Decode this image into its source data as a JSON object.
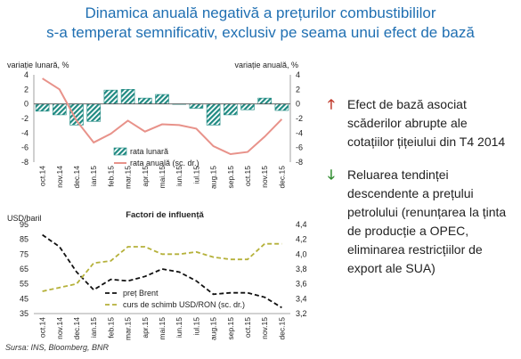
{
  "title": {
    "line1": "Dinamica anuală negativă a prețurilor combustibililor",
    "line2": "s-a temperat semnificativ, exclusiv pe seama unui efect de bază"
  },
  "colors": {
    "title": "#1f6fb2",
    "monthly_bar": "#1f8a82",
    "annual_line": "#e8928a",
    "brent_line": "#111111",
    "fx_line": "#b5b13a",
    "up_arrow": "#c0392b",
    "down_arrow": "#2e8b2e"
  },
  "bullets": [
    {
      "icon": "arrow-up-icon",
      "text": "Efect de bază asociat scăderilor abrupte ale cotațiilor țițeiului din T4 2014"
    },
    {
      "icon": "arrow-down-icon",
      "text": "Reluarea tendinței descendente a prețului petrolului (renunțarea la ținta de producție a OPEC, eliminarea restricțiilor de export ale SUA)"
    }
  ],
  "source": "Sursa: INS, Bloomberg, BNR",
  "chart_data": [
    {
      "type": "bar",
      "left_axis_label": "variație lunară, %",
      "right_axis_label": "variație anuală, %",
      "categories": [
        "oct.14",
        "nov.14",
        "dec.14",
        "ian.15",
        "feb.15",
        "mar.15",
        "apr.15",
        "mai.15",
        "iun.15",
        "iul.15",
        "aug.15",
        "sep.15",
        "oct.15",
        "nov.15",
        "dec.15"
      ],
      "ylim": [
        -8,
        4
      ],
      "yticks": [
        -8,
        -6,
        -4,
        -2,
        0,
        2,
        4
      ],
      "series": [
        {
          "name": "rata lunară",
          "type": "bar",
          "axis": "left",
          "values": [
            -1.0,
            -1.5,
            -2.9,
            -2.4,
            1.9,
            2.0,
            0.8,
            1.3,
            0.0,
            -0.6,
            -2.9,
            -1.5,
            -0.8,
            0.8,
            -0.9
          ]
        },
        {
          "name": "rata anuală  (sc. dr.)",
          "type": "line",
          "axis": "right",
          "values": [
            3.5,
            2.0,
            -2.3,
            -5.3,
            -4.1,
            -2.3,
            -3.8,
            -2.8,
            -2.9,
            -3.4,
            -5.8,
            -6.9,
            -6.6,
            -4.5,
            -2.1
          ]
        }
      ],
      "legend": "bottom-center"
    },
    {
      "type": "line",
      "title": "Factori de influență",
      "left_axis_label": "USD/baril",
      "categories": [
        "oct.14",
        "nov.14",
        "dec.14",
        "ian.15",
        "feb.15",
        "mar.15",
        "apr.15",
        "mai.15",
        "iun.15",
        "iul.15",
        "aug.15",
        "sep.15",
        "oct.15",
        "nov.15",
        "dec.15"
      ],
      "ylim_left": [
        35,
        95
      ],
      "yticks_left": [
        35,
        45,
        55,
        65,
        75,
        85,
        95
      ],
      "ylim_right": [
        3.2,
        4.4
      ],
      "yticks_right": [
        "3,2",
        "3,4",
        "3,6",
        "3,8",
        "4,0",
        "4,2",
        "4,4"
      ],
      "series": [
        {
          "name": "preț Brent",
          "axis": "left",
          "values": [
            88,
            80,
            63,
            51,
            58,
            57,
            60,
            65,
            63,
            57,
            48,
            49,
            49,
            46,
            39
          ]
        },
        {
          "name": "curs de schimb USD/RON  (sc. dr.)",
          "axis": "right",
          "values": [
            3.5,
            3.55,
            3.6,
            3.88,
            3.91,
            4.1,
            4.1,
            4.0,
            4.0,
            4.03,
            3.96,
            3.93,
            3.93,
            4.14,
            4.14
          ]
        }
      ],
      "legend": "bottom-right"
    }
  ]
}
